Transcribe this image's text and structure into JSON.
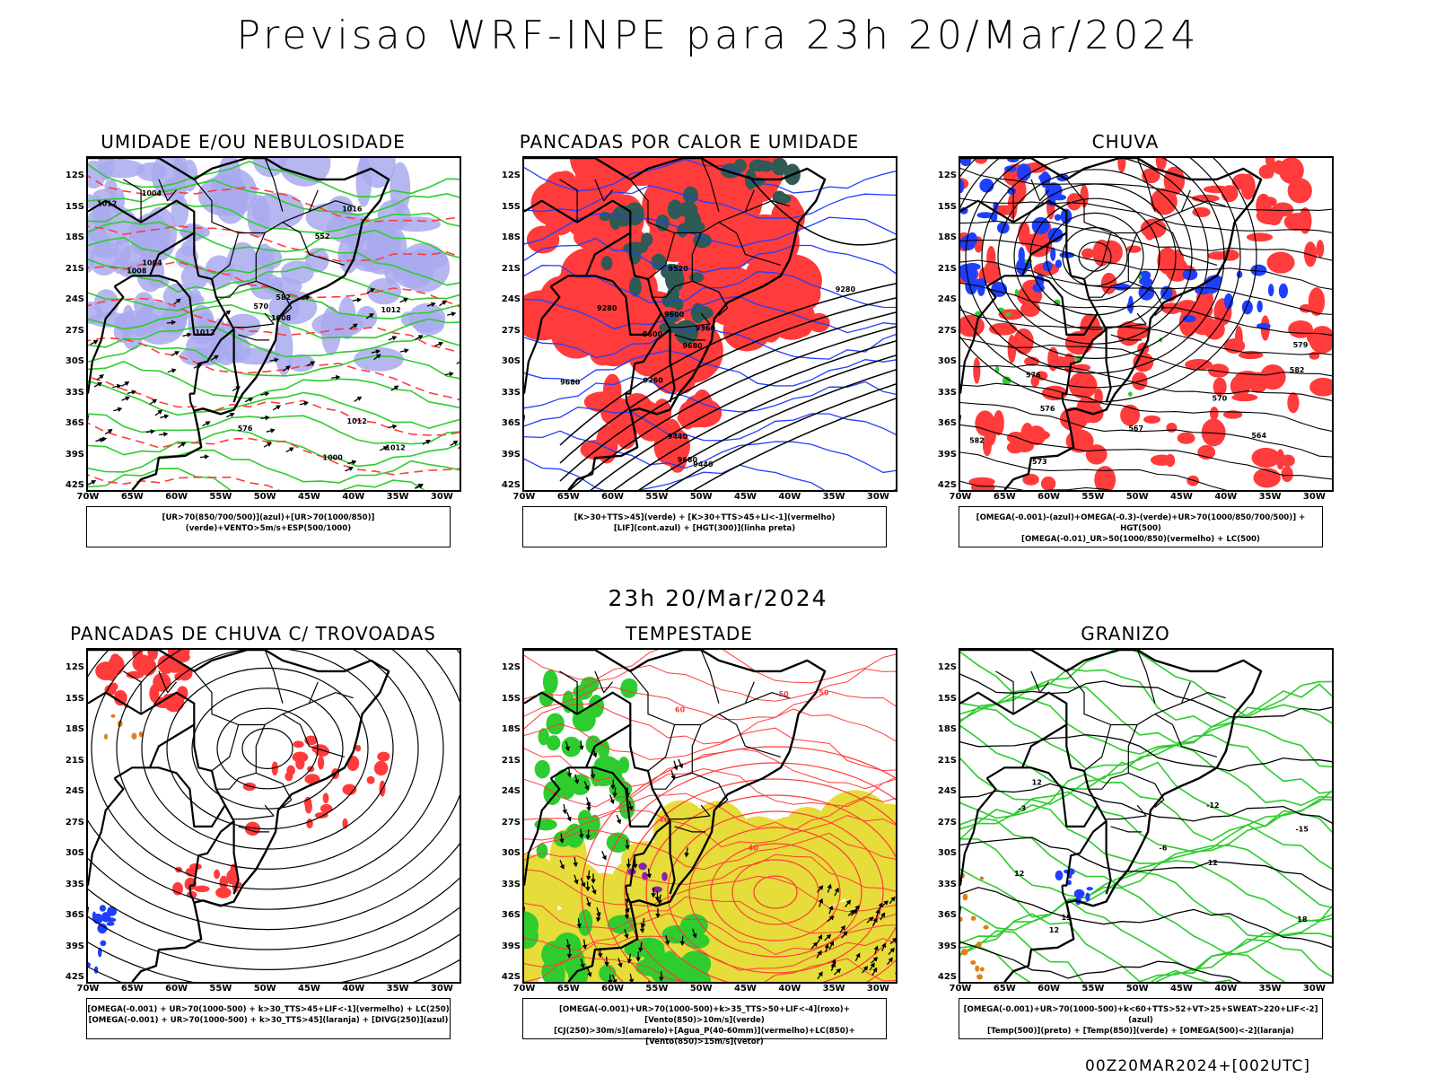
{
  "title": "Previsao WRF-INPE  para 23h 20/Mar/2024",
  "mid_title": "23h 20/Mar/2024",
  "footer": "00Z20MAR2024+[002UTC]",
  "axes": {
    "lat_labels": [
      "12S",
      "15S",
      "18S",
      "21S",
      "24S",
      "27S",
      "30S",
      "33S",
      "36S",
      "39S",
      "42S"
    ],
    "lon_labels": [
      "70W",
      "65W",
      "60W",
      "55W",
      "50W",
      "45W",
      "40W",
      "35W",
      "30W"
    ]
  },
  "colors": {
    "humidity_blue": "#a9a9ee",
    "green": "#2ecc2e",
    "red": "#ff3b3b",
    "dark_teal": "#2f5a55",
    "blue": "#1f3fff",
    "yellow": "#e6dc3a",
    "purple": "#8a1fb0",
    "orange": "#e0801a"
  },
  "panels": [
    {
      "title": "UMIDADE E/OU NEBULOSIDADE",
      "legend": [
        "[UR>70(850/700/500)](azul)+[UR>70(1000/850)](verde)+VENTO>5m/s+ESP(500/1000)"
      ],
      "contour_labels": [
        "1012",
        "1008",
        "1008",
        "1012",
        "1012",
        "1004",
        "1012",
        "1012",
        "1016",
        "1004",
        "1000",
        "576",
        "582",
        "570",
        "552"
      ]
    },
    {
      "title": "PANCADAS POR CALOR E UMIDADE",
      "legend": [
        "[K>30+TTS>45](verde) + [K>30+TTS>45+LI<-1](vermelho)",
        "[LIF](cont.azul) + [HGT(300)](linha preta)"
      ],
      "contour_labels": [
        "9680",
        "9680",
        "9680",
        "9600",
        "9600",
        "9520",
        "9440",
        "9360",
        "9280",
        "9440",
        "9360",
        "9280"
      ]
    },
    {
      "title": "CHUVA",
      "legend": [
        "[OMEGA(-0.001)-(azul)+OMEGA(-0.3)-(verde)+UR>70(1000/850/700/500)] + HGT(500)",
        "[OMEGA(-0.01)_UR>50(1000/850)(vermelho) + LC(500)"
      ],
      "contour_labels": [
        "582",
        "576",
        "573",
        "570",
        "567",
        "564",
        "582",
        "579",
        "576"
      ]
    },
    {
      "title": "PANCADAS DE CHUVA C/ TROVOADAS",
      "legend": [
        "[OMEGA(-0.001) + UR>70(1000-500) + k>30_TTS>45+LIF<-1](vermelho) + LC(250)",
        "[OMEGA(-0.001) + UR>70(1000-500) + k>30_TTS>45](laranja) + [DIVG(250)](azul)"
      ],
      "contour_labels": []
    },
    {
      "title": "TEMPESTADE",
      "legend": [
        "[OMEGA(-0.001)+UR>70(1000-500)+k>35_TTS>50+LIF<-4](roxo)+[Vento(850)>10m/s](verde)",
        "[CJ(250)>30m/s](amarelo)+[Agua_P(40-60mm)](vermelho)+LC(850)+[Vento(850)>15m/s](vetor)"
      ],
      "contour_labels": [
        "40",
        "50",
        "40",
        "50",
        "60"
      ]
    },
    {
      "title": "GRANIZO",
      "legend": [
        "[OMEGA(-0.001)+UR>70(1000-500)+k<60+TTS>52+VT>25+SWEAT>220+LIF<-2](azul)",
        "[Temp(500)](preto) + [Temp(850)](verde) + [OMEGA(500)<-2](laranja)"
      ],
      "contour_labels": [
        "12",
        "12",
        "-12",
        "12",
        "15",
        "18",
        "-3",
        "-6",
        "-12",
        "-15"
      ]
    }
  ]
}
